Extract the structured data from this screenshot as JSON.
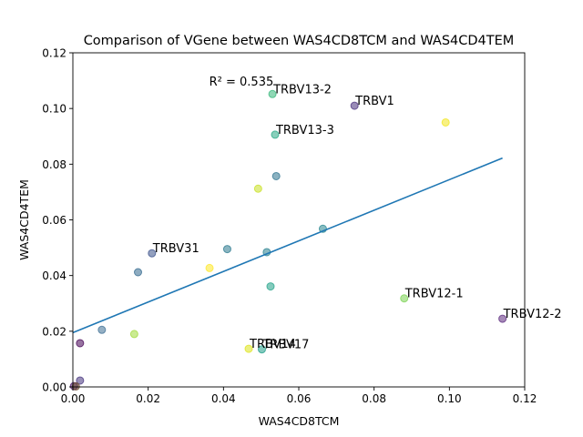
{
  "chart_data": {
    "type": "scatter",
    "title": "Comparison of VGene between WAS4CD8TCM and WAS4CD4TEM",
    "xlabel": "WAS4CD8TCM",
    "ylabel": "WAS4CD4TEM",
    "xlim": [
      0.0,
      0.12
    ],
    "ylim": [
      0.0,
      0.12
    ],
    "xticks": [
      "0.00",
      "0.02",
      "0.04",
      "0.06",
      "0.08",
      "0.10",
      "0.12"
    ],
    "yticks": [
      "0.00",
      "0.02",
      "0.04",
      "0.06",
      "0.08",
      "0.10",
      "0.12"
    ],
    "grid": false,
    "r2_label": "R² = 0.535",
    "fit_line": {
      "x": [
        0.0,
        0.1141
      ],
      "y": [
        0.0195,
        0.0822
      ],
      "color": "#1f77b4"
    },
    "points": [
      {
        "x": 0.053,
        "y": 0.1052,
        "color": "#35b779",
        "label": "TRBV13-2"
      },
      {
        "x": 0.0748,
        "y": 0.101,
        "color": "#472d7b",
        "label": "TRBV1"
      },
      {
        "x": 0.0537,
        "y": 0.0906,
        "color": "#26a884",
        "label": "TRBV13-3"
      },
      {
        "x": 0.099,
        "y": 0.095,
        "color": "#f2e51d",
        "label": ""
      },
      {
        "x": 0.054,
        "y": 0.0757,
        "color": "#2c728e",
        "label": ""
      },
      {
        "x": 0.0492,
        "y": 0.0712,
        "color": "#c8e020",
        "label": ""
      },
      {
        "x": 0.0664,
        "y": 0.0568,
        "color": "#25858e",
        "label": ""
      },
      {
        "x": 0.041,
        "y": 0.0495,
        "color": "#2a788e",
        "label": ""
      },
      {
        "x": 0.0515,
        "y": 0.0484,
        "color": "#27808e",
        "label": ""
      },
      {
        "x": 0.021,
        "y": 0.048,
        "color": "#3b528b",
        "label": "TRBV31"
      },
      {
        "x": 0.0363,
        "y": 0.0427,
        "color": "#fde725",
        "label": ""
      },
      {
        "x": 0.0173,
        "y": 0.0412,
        "color": "#31688e",
        "label": ""
      },
      {
        "x": 0.0525,
        "y": 0.0361,
        "color": "#1fa187",
        "label": ""
      },
      {
        "x": 0.088,
        "y": 0.0318,
        "color": "#7ad151",
        "label": "TRBV12-1"
      },
      {
        "x": 0.1141,
        "y": 0.0245,
        "color": "#5c2a7e",
        "label": "TRBV12-2"
      },
      {
        "x": 0.0077,
        "y": 0.0205,
        "color": "#3e6f94",
        "label": ""
      },
      {
        "x": 0.0163,
        "y": 0.019,
        "color": "#a0da39",
        "label": ""
      },
      {
        "x": 0.0019,
        "y": 0.0157,
        "color": "#440154",
        "label": ""
      },
      {
        "x": 0.0467,
        "y": 0.0137,
        "color": "#dde318",
        "label": "TRBV14"
      },
      {
        "x": 0.0502,
        "y": 0.0135,
        "color": "#1f9e89",
        "label": "TRBV17"
      },
      {
        "x": 0.0019,
        "y": 0.0023,
        "color": "#46337e",
        "label": ""
      },
      {
        "x": 0.0003,
        "y": 0.0003,
        "color": "#481467",
        "label": ""
      },
      {
        "x": 0.0008,
        "y": 0.0002,
        "color": "#6a4a2c",
        "label": ""
      }
    ]
  }
}
